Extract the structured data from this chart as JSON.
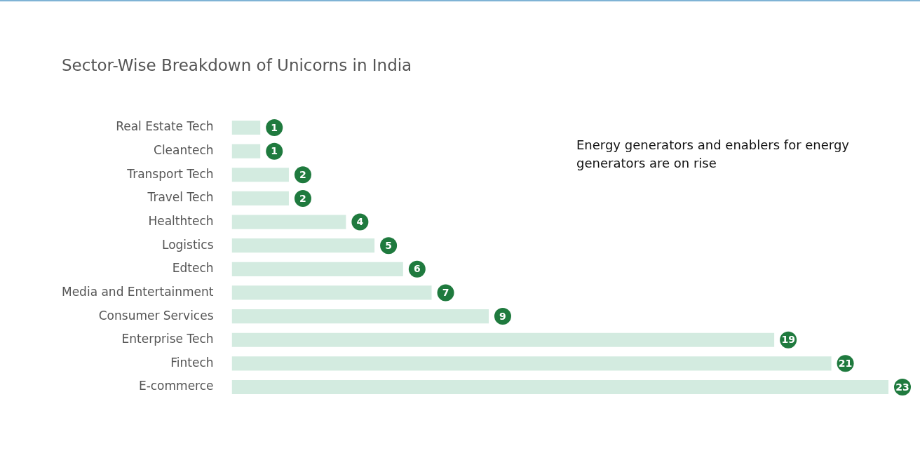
{
  "chart_data": {
    "type": "bar",
    "orientation": "horizontal",
    "title": "Sector-Wise Breakdown of Unicorns in India",
    "categories": [
      "Real Estate Tech",
      "Cleantech",
      "Transport Tech",
      "Travel Tech",
      "Healthtech",
      "Logistics",
      "Edtech",
      "Media and Entertainment",
      "Consumer Services",
      "Enterprise Tech",
      "Fintech",
      "E-commerce"
    ],
    "values": [
      1,
      1,
      2,
      2,
      4,
      5,
      6,
      7,
      9,
      19,
      21,
      23
    ],
    "color": "#d3ebe0",
    "data_labels": true,
    "grid": false,
    "legend": false,
    "annotations": [
      "Energy generators and enablers for energy generators are on rise"
    ]
  }
}
